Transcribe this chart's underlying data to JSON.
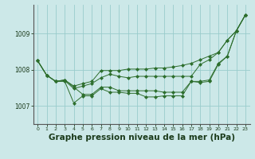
{
  "background_color": "#cce8e8",
  "grid_color": "#99cccc",
  "line_color": "#2d6e2d",
  "xlabel": "Graphe pression niveau de la mer (hPa)",
  "xlabel_fontsize": 7.5,
  "ylim": [
    1006.5,
    1009.8
  ],
  "xlim": [
    -0.5,
    23.5
  ],
  "yticks": [
    1007,
    1008,
    1009
  ],
  "xticks": [
    0,
    1,
    2,
    3,
    4,
    5,
    6,
    7,
    8,
    9,
    10,
    11,
    12,
    13,
    14,
    15,
    16,
    17,
    18,
    19,
    20,
    21,
    22,
    23
  ],
  "series": [
    [
      1008.25,
      1007.85,
      1007.68,
      1007.68,
      1007.08,
      1007.28,
      1007.28,
      1007.48,
      1007.38,
      1007.38,
      1007.35,
      1007.35,
      1007.25,
      1007.25,
      1007.28,
      1007.28,
      1007.28,
      1007.68,
      1007.65,
      1007.68,
      1008.15,
      1008.38,
      1009.08,
      1009.52
    ],
    [
      1008.25,
      1007.85,
      1007.68,
      1007.7,
      1007.48,
      1007.55,
      1007.62,
      1007.78,
      1007.88,
      1007.82,
      1007.78,
      1007.82,
      1007.82,
      1007.82,
      1007.82,
      1007.82,
      1007.82,
      1007.82,
      1008.15,
      1008.28,
      1008.48,
      1008.82,
      1009.08,
      1009.52
    ],
    [
      1008.25,
      1007.85,
      1007.68,
      1007.72,
      1007.55,
      1007.62,
      1007.68,
      1007.98,
      1007.98,
      1007.98,
      1008.02,
      1008.02,
      1008.02,
      1008.05,
      1008.05,
      1008.08,
      1008.12,
      1008.18,
      1008.28,
      1008.38,
      1008.48,
      1008.82,
      1009.08,
      1009.52
    ],
    [
      1008.25,
      1007.85,
      1007.68,
      1007.72,
      1007.52,
      1007.32,
      1007.32,
      1007.52,
      1007.52,
      1007.42,
      1007.42,
      1007.42,
      1007.42,
      1007.42,
      1007.38,
      1007.38,
      1007.38,
      1007.68,
      1007.68,
      1007.72,
      1008.18,
      1008.38,
      1009.08,
      1009.52
    ]
  ]
}
